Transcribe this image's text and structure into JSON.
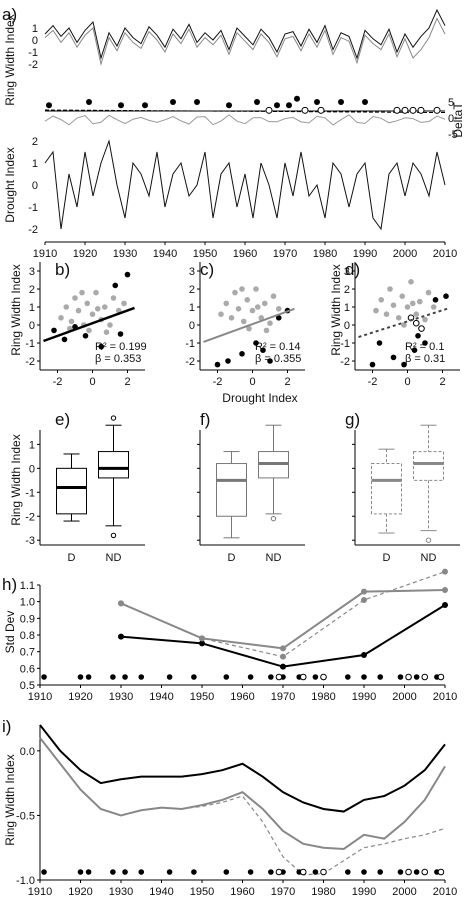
{
  "panels": {
    "a": {
      "label": "a)",
      "ylabel_rw": "Ring Width Index",
      "ylabel_delta": "DeltaT",
      "ylabel_drought": "Drought Index",
      "rw_ticks": [
        "1",
        "0",
        "-1",
        "-2"
      ],
      "delta_ticks": [
        "5",
        "0",
        "-5"
      ],
      "drought_ticks": [
        "2",
        "1",
        "0",
        "-1",
        "-2"
      ],
      "x_ticks": [
        "1910",
        "1920",
        "1930",
        "1940",
        "1950",
        "1960",
        "1970",
        "1980",
        "1990",
        "2000",
        "2010"
      ]
    },
    "b": {
      "label": "b)",
      "r2": "R² = 0.199",
      "beta": "β = 0.353"
    },
    "c": {
      "label": "c)",
      "r2": "R² = 0.14",
      "beta": "β = 0.355"
    },
    "d": {
      "label": "d)",
      "r2": "R² = 0.1",
      "beta": "β = 0.31"
    },
    "e": {
      "label": "e)"
    },
    "f": {
      "label": "f)"
    },
    "g": {
      "label": "g)"
    },
    "h": {
      "label": "h)",
      "ylabel": "Std Dev"
    },
    "i": {
      "label": "i)",
      "ylabel": "Ring Width Index"
    },
    "scatter": {
      "ylabel": "Ring Width Index",
      "xlabel": "Drought Index",
      "y_ticks": [
        "3",
        "2",
        "1",
        "0",
        "-1",
        "-2"
      ],
      "x_ticks": [
        "-2",
        "0",
        "2"
      ]
    },
    "box": {
      "ylabel": "Ring Width Index",
      "y_ticks": [
        "1",
        "0",
        "-1",
        "-2",
        "-3"
      ],
      "cats": [
        "D",
        "ND"
      ]
    }
  },
  "chart_data": [
    {
      "type": "line",
      "panel": "a",
      "x": [
        1910,
        1912,
        1914,
        1916,
        1918,
        1920,
        1922,
        1924,
        1926,
        1928,
        1930,
        1932,
        1934,
        1936,
        1938,
        1940,
        1942,
        1944,
        1946,
        1948,
        1950,
        1952,
        1954,
        1956,
        1958,
        1960,
        1962,
        1964,
        1966,
        1968,
        1970,
        1972,
        1974,
        1976,
        1978,
        1980,
        1982,
        1984,
        1986,
        1988,
        1990,
        1992,
        1994,
        1996,
        1998,
        2000,
        2002,
        2004,
        2006,
        2008,
        2010
      ],
      "series": [
        {
          "values": [
            0.5,
            1.2,
            0.3,
            1.0,
            -0.2,
            0.8,
            1.5,
            -1.5,
            0.6,
            -0.5,
            1.0,
            0.2,
            -0.3,
            1.1,
            0.4,
            -0.6,
            0.9,
            0.1,
            1.3,
            -0.2,
            0.6,
            0.0,
            0.8,
            -0.8,
            1.0,
            0.3,
            -0.4,
            0.9,
            0.2,
            -1.0,
            0.5,
            0.7,
            -0.5,
            0.9,
            -0.2,
            1.2,
            -0.8,
            0.6,
            0.3,
            -1.5,
            0.8,
            0.1,
            -0.4,
            0.9,
            -1.0,
            0.5,
            -0.6,
            0.3,
            1.0,
            2.5,
            1.2
          ]
        },
        {
          "values": [
            0.2,
            0.8,
            -0.2,
            0.6,
            -0.6,
            0.4,
            1.0,
            -2.0,
            0.2,
            -0.9,
            0.6,
            -0.2,
            -0.7,
            0.7,
            0.0,
            -1.0,
            0.5,
            -0.3,
            0.9,
            -0.6,
            0.2,
            -0.4,
            0.4,
            -1.2,
            0.6,
            -0.1,
            -0.8,
            0.5,
            -0.2,
            -1.4,
            0.1,
            0.3,
            -0.9,
            0.5,
            -0.6,
            0.8,
            -1.2,
            0.2,
            -0.1,
            -1.9,
            0.4,
            -0.3,
            -0.8,
            0.5,
            -1.4,
            0.1,
            -1.5,
            -0.8,
            0.2,
            1.8,
            0.5
          ]
        },
        {
          "values": [
            1.0,
            1.5,
            -2.0,
            0.5,
            -1.0,
            1.5,
            -0.5,
            1.0,
            2.0,
            0.0,
            -1.5,
            1.0,
            0.5,
            -0.5,
            1.5,
            -1.0,
            0.5,
            1.0,
            -0.5,
            0.0,
            1.5,
            -1.5,
            0.5,
            1.0,
            -1.0,
            0.5,
            -1.5,
            1.0,
            0.0,
            -1.5,
            1.0,
            -0.5,
            1.5,
            -0.5,
            0.0,
            -1.5,
            1.0,
            0.5,
            -1.0,
            0.5,
            1.0,
            -1.5,
            -2.0,
            0.5,
            1.0,
            -0.5,
            1.0,
            0.5,
            -0.5,
            1.5,
            0.0
          ]
        }
      ],
      "delta_t": {
        "markers_filled": [
          1911,
          1921,
          1929,
          1935,
          1942,
          1948,
          1956,
          1963,
          1968,
          1971,
          1973,
          1978,
          1984,
          1990
        ],
        "markers_open": [
          1966,
          1975,
          1979,
          1998,
          2000,
          2002,
          2004,
          2008
        ]
      }
    },
    {
      "type": "scatter",
      "panel": "b",
      "xlim": [
        -3,
        3
      ],
      "ylim": [
        -2.5,
        3.5
      ],
      "fit": {
        "slope": 0.353,
        "intercept": 0.1
      },
      "grey": [
        [
          -1.8,
          0.4
        ],
        [
          -1.5,
          1.0
        ],
        [
          -1.2,
          0.2
        ],
        [
          -1.0,
          1.5
        ],
        [
          -0.8,
          0.8
        ],
        [
          -0.5,
          0.0
        ],
        [
          -0.3,
          1.2
        ],
        [
          0,
          0.6
        ],
        [
          0.2,
          1.8
        ],
        [
          0.5,
          0.3
        ],
        [
          0.7,
          1.0
        ],
        [
          1.0,
          0.0
        ],
        [
          1.2,
          1.5
        ],
        [
          1.5,
          0.8
        ],
        [
          -0.2,
          -0.3
        ],
        [
          0.3,
          0.9
        ],
        [
          -0.6,
          1.8
        ],
        [
          0.8,
          -0.4
        ],
        [
          1.8,
          1.2
        ],
        [
          -1.3,
          -0.2
        ]
      ],
      "black": [
        [
          -2.2,
          -0.3
        ],
        [
          -1.6,
          -0.8
        ],
        [
          -1.0,
          -0.1
        ],
        [
          -0.4,
          -0.6
        ],
        [
          0.5,
          -1.2
        ],
        [
          1.3,
          2.2
        ],
        [
          2.0,
          2.8
        ],
        [
          1.6,
          -0.5
        ]
      ]
    },
    {
      "type": "scatter",
      "panel": "c",
      "xlim": [
        -3,
        3
      ],
      "ylim": [
        -2.5,
        3.5
      ],
      "fit": {
        "slope": 0.355,
        "intercept": 0.05
      },
      "grey": [
        [
          -1.8,
          0.6
        ],
        [
          -1.5,
          1.2
        ],
        [
          -1.2,
          0.4
        ],
        [
          -1.0,
          1.8
        ],
        [
          -0.8,
          0.9
        ],
        [
          -0.5,
          0.2
        ],
        [
          -0.3,
          1.4
        ],
        [
          0,
          0.8
        ],
        [
          0.2,
          2.0
        ],
        [
          0.5,
          0.4
        ],
        [
          0.7,
          1.2
        ],
        [
          1.0,
          0.1
        ],
        [
          1.2,
          1.6
        ],
        [
          1.5,
          0.9
        ],
        [
          -0.2,
          -0.2
        ],
        [
          0.3,
          1.0
        ],
        [
          -0.6,
          2.0
        ],
        [
          0.8,
          -0.3
        ]
      ],
      "black": [
        [
          -2.0,
          -2.2
        ],
        [
          -1.4,
          -2.0
        ],
        [
          -0.6,
          -1.6
        ],
        [
          0.2,
          -1.0
        ],
        [
          0.6,
          -1.4
        ],
        [
          1.0,
          -2.0
        ],
        [
          1.5,
          0.4
        ],
        [
          2.0,
          0.8
        ]
      ]
    },
    {
      "type": "scatter",
      "panel": "d",
      "xlim": [
        -3,
        3
      ],
      "ylim": [
        -2.5,
        3.5
      ],
      "fit": {
        "slope": 0.31,
        "intercept": 0.2
      },
      "grey": [
        [
          -1.8,
          0.8
        ],
        [
          -1.5,
          1.4
        ],
        [
          -1.2,
          0.6
        ],
        [
          -1.0,
          2.0
        ],
        [
          -0.8,
          1.1
        ],
        [
          -0.5,
          0.4
        ],
        [
          -0.3,
          1.6
        ],
        [
          0,
          1.0
        ],
        [
          0.2,
          2.4
        ],
        [
          0.5,
          0.6
        ],
        [
          0.7,
          1.3
        ],
        [
          1.0,
          0.3
        ],
        [
          1.2,
          1.8
        ],
        [
          1.5,
          1.0
        ],
        [
          -0.2,
          0.0
        ],
        [
          0.3,
          1.2
        ]
      ],
      "black": [
        [
          -2.0,
          -2.2
        ],
        [
          -1.6,
          -1.0
        ],
        [
          -0.8,
          -1.8
        ],
        [
          -0.2,
          -2.2
        ],
        [
          0.4,
          -1.4
        ],
        [
          1.0,
          -1.0
        ],
        [
          1.6,
          1.4
        ],
        [
          2.2,
          1.6
        ],
        [
          0.6,
          -0.6
        ]
      ],
      "open": [
        [
          0.2,
          0.4
        ],
        [
          0.5,
          0.1
        ],
        [
          0.8,
          -0.2
        ]
      ]
    },
    {
      "type": "box",
      "panel": "e",
      "ylim": [
        -3.2,
        1.6
      ],
      "boxes": [
        {
          "cat": "D",
          "min": -2.2,
          "q1": -1.9,
          "med": -0.8,
          "q3": 0.0,
          "max": 0.6,
          "color": "#000"
        },
        {
          "cat": "ND",
          "min": -2.4,
          "q1": -0.4,
          "med": 0.0,
          "q3": 0.7,
          "max": 1.8,
          "color": "#000",
          "out": [
            2.1,
            -2.8
          ]
        }
      ]
    },
    {
      "type": "box",
      "panel": "f",
      "ylim": [
        -3.2,
        1.6
      ],
      "boxes": [
        {
          "cat": "D",
          "min": -2.9,
          "q1": -2.0,
          "med": -0.5,
          "q3": 0.2,
          "max": 0.7,
          "color": "#777"
        },
        {
          "cat": "ND",
          "min": -1.9,
          "q1": -0.4,
          "med": 0.2,
          "q3": 0.7,
          "max": 1.8,
          "color": "#777",
          "out": [
            -2.1
          ]
        }
      ]
    },
    {
      "type": "box",
      "panel": "g",
      "ylim": [
        -3.2,
        1.6
      ],
      "boxes": [
        {
          "cat": "D",
          "min": -2.7,
          "q1": -1.9,
          "med": -0.5,
          "q3": 0.2,
          "max": 0.8,
          "color": "#888",
          "dashed": true
        },
        {
          "cat": "ND",
          "min": -2.6,
          "q1": -0.5,
          "med": 0.2,
          "q3": 0.7,
          "max": 1.8,
          "color": "#888",
          "dashed": true,
          "out": [
            -3.0
          ]
        }
      ]
    },
    {
      "type": "line",
      "panel": "h",
      "ylim": [
        0.5,
        1.1
      ],
      "y_ticks": [
        "1.1",
        "1.0",
        "0.9",
        "0.8",
        "0.7",
        "0.6",
        "0.5"
      ],
      "x_ticks": [
        "1910",
        "1920",
        "1930",
        "1940",
        "1950",
        "1960",
        "1970",
        "1980",
        "1990",
        "2000",
        "2010"
      ],
      "series": [
        {
          "x": [
            1930,
            1950,
            1970,
            1990,
            2010
          ],
          "values": [
            0.79,
            0.75,
            0.61,
            0.68,
            0.98
          ],
          "color": "#000"
        },
        {
          "x": [
            1930,
            1950,
            1970,
            1990,
            2010
          ],
          "values": [
            0.99,
            0.78,
            0.72,
            1.06,
            1.07
          ],
          "color": "#888"
        },
        {
          "x": [
            1930,
            1950,
            1970,
            1990,
            2010
          ],
          "values": [
            0.99,
            0.78,
            0.67,
            1.01,
            1.18
          ],
          "color": "#888",
          "dashed": true
        }
      ],
      "markers_filled": [
        1911,
        1920,
        1922,
        1928,
        1931,
        1935,
        1942,
        1948,
        1956,
        1962,
        1967,
        1970,
        1974,
        1978,
        1986,
        1990,
        1994,
        1999,
        2003,
        2008
      ],
      "markers_open": [
        1969,
        1975,
        1980,
        2001,
        2005,
        2009
      ]
    },
    {
      "type": "line",
      "panel": "i",
      "ylim": [
        -1.0,
        0.2
      ],
      "y_ticks": [
        "0.0",
        "-0.5",
        "-1.0"
      ],
      "x_ticks": [
        "1910",
        "1920",
        "1930",
        "1940",
        "1950",
        "1960",
        "1970",
        "1980",
        "1990",
        "2000",
        "2010"
      ],
      "series": [
        {
          "x": [
            1910,
            1915,
            1920,
            1925,
            1930,
            1935,
            1940,
            1945,
            1950,
            1955,
            1960,
            1965,
            1970,
            1975,
            1980,
            1985,
            1990,
            1995,
            2000,
            2005,
            2010
          ],
          "values": [
            0.2,
            0.0,
            -0.15,
            -0.25,
            -0.22,
            -0.2,
            -0.2,
            -0.2,
            -0.18,
            -0.15,
            -0.1,
            -0.2,
            -0.32,
            -0.4,
            -0.45,
            -0.47,
            -0.38,
            -0.35,
            -0.27,
            -0.15,
            0.05
          ],
          "color": "#000"
        },
        {
          "x": [
            1910,
            1915,
            1920,
            1925,
            1930,
            1935,
            1940,
            1945,
            1950,
            1955,
            1960,
            1965,
            1970,
            1975,
            1980,
            1985,
            1990,
            1995,
            2000,
            2005,
            2010
          ],
          "values": [
            0.1,
            -0.1,
            -0.3,
            -0.45,
            -0.5,
            -0.46,
            -0.44,
            -0.45,
            -0.42,
            -0.38,
            -0.32,
            -0.45,
            -0.62,
            -0.72,
            -0.75,
            -0.76,
            -0.65,
            -0.68,
            -0.55,
            -0.38,
            -0.12
          ],
          "color": "#888"
        },
        {
          "x": [
            1945,
            1950,
            1955,
            1960,
            1965,
            1970,
            1975,
            1980,
            1985,
            1990,
            1995,
            2000,
            2005,
            2010
          ],
          "values": [
            -0.45,
            -0.43,
            -0.4,
            -0.35,
            -0.55,
            -0.82,
            -0.96,
            -0.95,
            -0.85,
            -0.75,
            -0.72,
            -0.68,
            -0.65,
            -0.6
          ],
          "color": "#888",
          "dashed": true
        }
      ],
      "markers_filled": [
        1911,
        1920,
        1922,
        1928,
        1931,
        1935,
        1942,
        1948,
        1956,
        1962,
        1967,
        1970,
        1974,
        1978,
        1986,
        1990,
        1994,
        1999,
        2003,
        2008
      ],
      "markers_open": [
        1969,
        1975,
        1980,
        2001,
        2005,
        2009
      ]
    }
  ]
}
